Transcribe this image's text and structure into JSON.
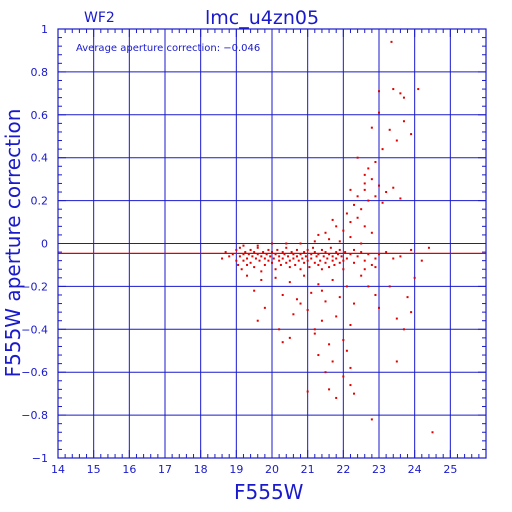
{
  "chart_data": {
    "type": "scatter",
    "title": "lmc_u4zn05",
    "panel_label": "WF2",
    "annotation": "Average aperture correction:  −0.046",
    "xlabel": "F555W",
    "ylabel": "F555W  aperture  correction",
    "xlim": [
      14,
      26
    ],
    "ylim": [
      -1,
      1
    ],
    "x_ticks": [
      "14",
      "15",
      "16",
      "17",
      "18",
      "19",
      "20",
      "21",
      "22",
      "23",
      "24",
      "25"
    ],
    "y_ticks": [
      "1",
      "0.8",
      "0.6",
      "0.4",
      "0.2",
      "0",
      "−0.2",
      "−0.4",
      "−0.6",
      "−0.8",
      "−1"
    ],
    "grid": true,
    "average_line": -0.046,
    "colors": {
      "axes": "#1a1acc",
      "points": "#e00000",
      "average_line": "#e00000"
    },
    "series": [
      {
        "points": [
          [
            18.6,
            -0.07
          ],
          [
            18.7,
            -0.04
          ],
          [
            18.8,
            -0.06
          ],
          [
            18.9,
            -0.05
          ],
          [
            19.0,
            -0.08
          ],
          [
            19.0,
            -0.03
          ],
          [
            19.05,
            -0.1
          ],
          [
            19.1,
            -0.06
          ],
          [
            19.1,
            -0.02
          ],
          [
            19.15,
            -0.12
          ],
          [
            19.2,
            -0.05
          ],
          [
            19.2,
            -0.08
          ],
          [
            19.25,
            -0.04
          ],
          [
            19.3,
            -0.07
          ],
          [
            19.3,
            -0.1
          ],
          [
            19.35,
            -0.05
          ],
          [
            19.4,
            -0.03
          ],
          [
            19.4,
            -0.09
          ],
          [
            19.45,
            -0.06
          ],
          [
            19.5,
            -0.04
          ],
          [
            19.5,
            -0.11
          ],
          [
            19.55,
            -0.07
          ],
          [
            19.6,
            -0.05
          ],
          [
            19.6,
            -0.02
          ],
          [
            19.65,
            -0.08
          ],
          [
            19.7,
            -0.06
          ],
          [
            19.7,
            -0.13
          ],
          [
            19.75,
            -0.04
          ],
          [
            19.8,
            -0.07
          ],
          [
            19.8,
            -0.1
          ],
          [
            19.85,
            -0.05
          ],
          [
            19.9,
            -0.03
          ],
          [
            19.9,
            -0.08
          ],
          [
            19.95,
            -0.06
          ],
          [
            20.0,
            -0.09
          ],
          [
            20.0,
            -0.04
          ],
          [
            20.05,
            -0.07
          ],
          [
            20.1,
            -0.05
          ],
          [
            20.1,
            -0.12
          ],
          [
            20.15,
            -0.03
          ],
          [
            20.2,
            -0.08
          ],
          [
            20.2,
            -0.06
          ],
          [
            20.25,
            -0.1
          ],
          [
            20.3,
            -0.04
          ],
          [
            20.3,
            -0.07
          ],
          [
            20.35,
            -0.05
          ],
          [
            20.4,
            -0.09
          ],
          [
            20.4,
            -0.02
          ],
          [
            20.45,
            -0.06
          ],
          [
            20.5,
            -0.08
          ],
          [
            20.5,
            -0.11
          ],
          [
            20.55,
            -0.04
          ],
          [
            20.6,
            -0.07
          ],
          [
            20.6,
            -0.05
          ],
          [
            20.65,
            -0.1
          ],
          [
            20.7,
            -0.03
          ],
          [
            20.7,
            -0.06
          ],
          [
            20.75,
            -0.08
          ],
          [
            20.8,
            -0.05
          ],
          [
            20.8,
            -0.12
          ],
          [
            20.85,
            -0.07
          ],
          [
            20.9,
            -0.04
          ],
          [
            20.9,
            -0.09
          ],
          [
            20.95,
            -0.06
          ],
          [
            21.0,
            -0.03
          ],
          [
            21.0,
            -0.08
          ],
          [
            21.05,
            -0.11
          ],
          [
            21.1,
            -0.05
          ],
          [
            21.1,
            -0.07
          ],
          [
            21.15,
            -0.02
          ],
          [
            21.2,
            -0.09
          ],
          [
            21.2,
            -0.04
          ],
          [
            21.25,
            -0.06
          ],
          [
            21.3,
            -0.1
          ],
          [
            21.3,
            -0.05
          ],
          [
            21.35,
            -0.08
          ],
          [
            21.4,
            -0.03
          ],
          [
            21.4,
            -0.12
          ],
          [
            21.45,
            -0.06
          ],
          [
            21.5,
            -0.04
          ],
          [
            21.5,
            -0.09
          ],
          [
            21.55,
            -0.07
          ],
          [
            21.6,
            -0.05
          ],
          [
            21.6,
            -0.11
          ],
          [
            21.65,
            -0.02
          ],
          [
            21.7,
            -0.08
          ],
          [
            21.7,
            -0.06
          ],
          [
            21.75,
            -0.1
          ],
          [
            21.8,
            -0.04
          ],
          [
            21.8,
            -0.07
          ],
          [
            21.85,
            -0.05
          ],
          [
            21.9,
            -0.09
          ],
          [
            21.9,
            -0.03
          ],
          [
            21.95,
            -0.06
          ],
          [
            22.0,
            -0.08
          ],
          [
            22.0,
            -0.12
          ],
          [
            22.05,
            -0.04
          ],
          [
            22.1,
            -0.07
          ],
          [
            22.2,
            -0.05
          ],
          [
            22.3,
            -0.09
          ],
          [
            22.4,
            -0.06
          ],
          [
            22.5,
            -0.04
          ],
          [
            22.6,
            -0.08
          ],
          [
            22.7,
            -0.05
          ],
          [
            22.8,
            -0.1
          ],
          [
            22.9,
            -0.07
          ],
          [
            23.0,
            -0.05
          ],
          [
            19.2,
            -0.01
          ],
          [
            19.6,
            -0.01
          ],
          [
            20.0,
            -0.0
          ],
          [
            20.4,
            0.0
          ],
          [
            20.8,
            0.0
          ],
          [
            21.2,
            0.01
          ],
          [
            21.6,
            0.02
          ],
          [
            21.9,
            0.01
          ],
          [
            22.2,
            0.03
          ],
          [
            19.3,
            -0.15
          ],
          [
            19.7,
            -0.17
          ],
          [
            20.1,
            -0.16
          ],
          [
            20.5,
            -0.18
          ],
          [
            20.9,
            -0.15
          ],
          [
            21.3,
            -0.19
          ],
          [
            21.7,
            -0.17
          ],
          [
            22.1,
            -0.2
          ],
          [
            19.5,
            -0.22
          ],
          [
            20.3,
            -0.24
          ],
          [
            20.7,
            -0.26
          ],
          [
            21.1,
            -0.23
          ],
          [
            21.5,
            -0.27
          ],
          [
            21.9,
            -0.25
          ],
          [
            22.3,
            -0.28
          ],
          [
            19.8,
            -0.3
          ],
          [
            20.6,
            -0.33
          ],
          [
            21.0,
            -0.31
          ],
          [
            21.4,
            -0.36
          ],
          [
            21.8,
            -0.34
          ],
          [
            22.2,
            -0.38
          ],
          [
            19.6,
            -0.36
          ],
          [
            20.2,
            -0.4
          ],
          [
            20.5,
            -0.44
          ],
          [
            21.2,
            -0.42
          ],
          [
            21.6,
            -0.47
          ],
          [
            22.0,
            -0.45
          ],
          [
            20.3,
            -0.46
          ],
          [
            21.3,
            -0.52
          ],
          [
            21.7,
            -0.55
          ],
          [
            22.1,
            -0.5
          ],
          [
            21.5,
            -0.6
          ],
          [
            22.0,
            -0.62
          ],
          [
            22.2,
            -0.58
          ],
          [
            21.6,
            -0.68
          ],
          [
            21.8,
            -0.72
          ],
          [
            22.2,
            -0.66
          ],
          [
            21.0,
            -0.69
          ],
          [
            22.3,
            -0.7
          ],
          [
            21.2,
            -0.4
          ],
          [
            20.8,
            -0.28
          ],
          [
            21.4,
            -0.22
          ],
          [
            22.5,
            -0.15
          ],
          [
            22.7,
            -0.2
          ],
          [
            22.9,
            -0.24
          ],
          [
            23.0,
            -0.3
          ],
          [
            23.3,
            -0.2
          ],
          [
            23.5,
            -0.35
          ],
          [
            23.8,
            -0.25
          ],
          [
            24.0,
            -0.16
          ],
          [
            23.5,
            -0.55
          ],
          [
            23.7,
            -0.4
          ],
          [
            23.9,
            -0.32
          ],
          [
            24.2,
            -0.08
          ],
          [
            24.5,
            -0.88
          ],
          [
            22.8,
            -0.82
          ],
          [
            23.2,
            -0.04
          ],
          [
            23.4,
            -0.07
          ],
          [
            23.6,
            -0.06
          ],
          [
            23.9,
            -0.03
          ],
          [
            24.4,
            -0.02
          ],
          [
            21.5,
            0.05
          ],
          [
            21.8,
            0.08
          ],
          [
            22.0,
            0.06
          ],
          [
            22.2,
            0.1
          ],
          [
            22.4,
            0.12
          ],
          [
            22.6,
            0.08
          ],
          [
            22.8,
            0.05
          ],
          [
            21.3,
            0.04
          ],
          [
            21.7,
            0.11
          ],
          [
            22.1,
            0.14
          ],
          [
            22.3,
            0.18
          ],
          [
            22.5,
            0.16
          ],
          [
            22.7,
            0.2
          ],
          [
            22.9,
            0.22
          ],
          [
            22.6,
            0.25
          ],
          [
            22.8,
            0.3
          ],
          [
            23.0,
            0.27
          ],
          [
            23.2,
            0.24
          ],
          [
            23.4,
            0.26
          ],
          [
            23.6,
            0.21
          ],
          [
            22.7,
            0.35
          ],
          [
            22.9,
            0.38
          ],
          [
            22.6,
            0.32
          ],
          [
            22.4,
            0.4
          ],
          [
            22.8,
            0.54
          ],
          [
            23.0,
            0.61
          ],
          [
            23.1,
            0.44
          ],
          [
            23.3,
            0.53
          ],
          [
            23.5,
            0.48
          ],
          [
            23.7,
            0.57
          ],
          [
            23.9,
            0.51
          ],
          [
            23.0,
            0.71
          ],
          [
            23.4,
            0.72
          ],
          [
            23.6,
            0.7
          ],
          [
            23.7,
            0.68
          ],
          [
            24.1,
            0.72
          ],
          [
            23.35,
            0.94
          ],
          [
            22.5,
            0.0
          ],
          [
            22.3,
            -0.03
          ],
          [
            22.6,
            -0.12
          ],
          [
            22.9,
            -0.11
          ],
          [
            22.4,
            0.22
          ],
          [
            22.6,
            0.28
          ],
          [
            23.1,
            0.19
          ],
          [
            22.2,
            0.25
          ]
        ]
      }
    ]
  }
}
